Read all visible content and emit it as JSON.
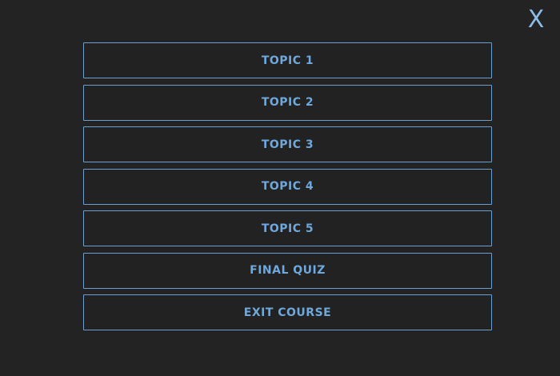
{
  "page": {
    "background": "#232323",
    "accent_border": "#6b9fd0",
    "accent_text": "#6fa8dc",
    "close_color": "#8fbae6"
  },
  "close": {
    "label": "X"
  },
  "menu": {
    "items": [
      {
        "label": "TOPIC 1"
      },
      {
        "label": "TOPIC 2"
      },
      {
        "label": "TOPIC 3"
      },
      {
        "label": "TOPIC 4"
      },
      {
        "label": "TOPIC 5"
      },
      {
        "label": "FINAL QUIZ"
      },
      {
        "label": "EXIT COURSE"
      }
    ]
  }
}
